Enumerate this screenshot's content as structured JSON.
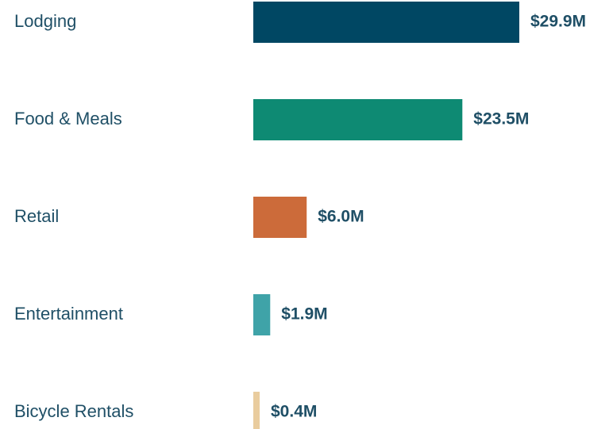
{
  "chart_data": {
    "type": "bar",
    "orientation": "horizontal",
    "categories": [
      "Lodging",
      "Food & Meals",
      "Retail",
      "Entertainment",
      "Bicycle Rentals"
    ],
    "values": [
      29.9,
      23.5,
      6.0,
      1.9,
      0.4
    ],
    "value_labels": [
      "$29.9M",
      "$23.5M",
      "$6.0M",
      "$1.9M",
      "$0.4M"
    ],
    "colors": [
      "#004763",
      "#0e8a73",
      "#cc6b3a",
      "#3fa3a8",
      "#e9cc9e"
    ]
  }
}
